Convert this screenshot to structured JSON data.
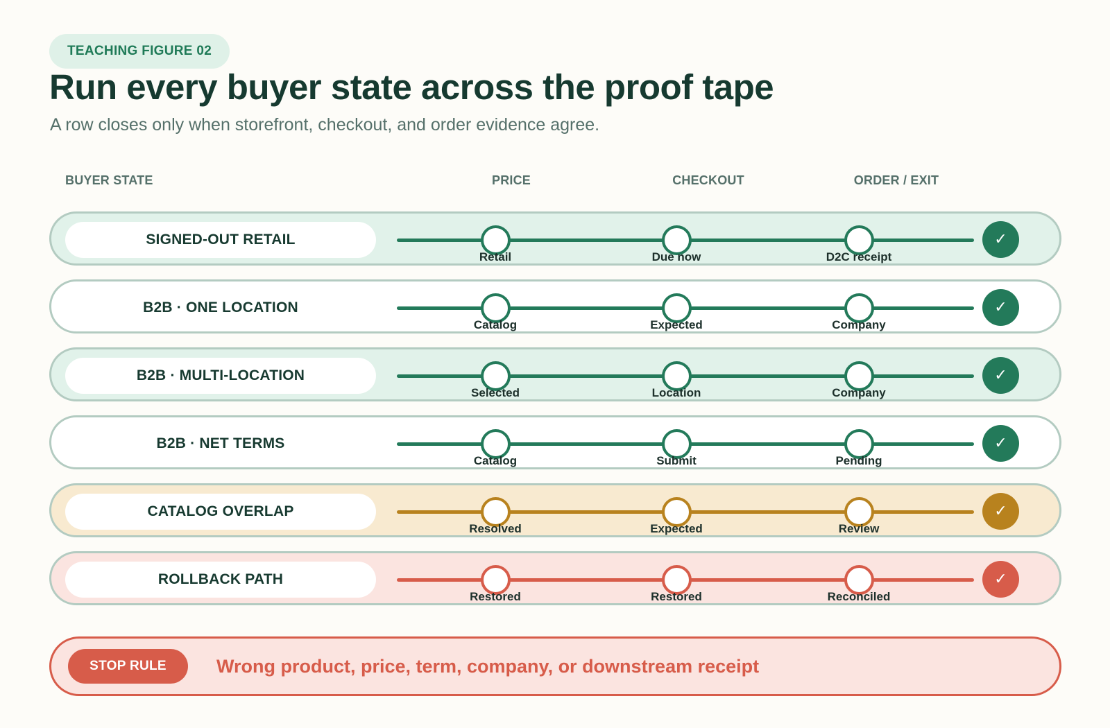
{
  "header": {
    "badge": "TEACHING FIGURE 02",
    "title": "Run every buyer state across the proof tape",
    "subtitle": "A row closes only when storefront, checkout, and order evidence agree."
  },
  "columns": [
    "BUYER STATE",
    "PRICE",
    "CHECKOUT",
    "ORDER / EXIT"
  ],
  "colors": {
    "green": "#237a5a",
    "amber": "#b8821e",
    "red": "#d75c4a"
  },
  "rows": [
    {
      "state": "SIGNED-OUT RETAIL",
      "theme": "green",
      "tone": "green",
      "labels": [
        "Retail",
        "Due now",
        "D2C receipt"
      ],
      "check_icon": "check-icon"
    },
    {
      "state": "B2B · ONE LOCATION",
      "theme": "white",
      "tone": "green",
      "labels": [
        "Catalog",
        "Expected",
        "Company"
      ],
      "check_icon": "check-icon"
    },
    {
      "state": "B2B · MULTI-LOCATION",
      "theme": "green",
      "tone": "green",
      "labels": [
        "Selected",
        "Location",
        "Company"
      ],
      "check_icon": "check-icon"
    },
    {
      "state": "B2B · NET TERMS",
      "theme": "white",
      "tone": "green",
      "labels": [
        "Catalog",
        "Submit",
        "Pending"
      ],
      "check_icon": "check-icon"
    },
    {
      "state": "CATALOG OVERLAP",
      "theme": "amber",
      "tone": "amber",
      "labels": [
        "Resolved",
        "Expected",
        "Review"
      ],
      "check_icon": "check-icon"
    },
    {
      "state": "ROLLBACK PATH",
      "theme": "red",
      "tone": "red",
      "labels": [
        "Restored",
        "Restored",
        "Reconciled"
      ],
      "check_icon": "check-icon"
    }
  ],
  "stop_rule": {
    "label": "STOP RULE",
    "text": "Wrong product, price, term, company, or downstream receipt"
  }
}
